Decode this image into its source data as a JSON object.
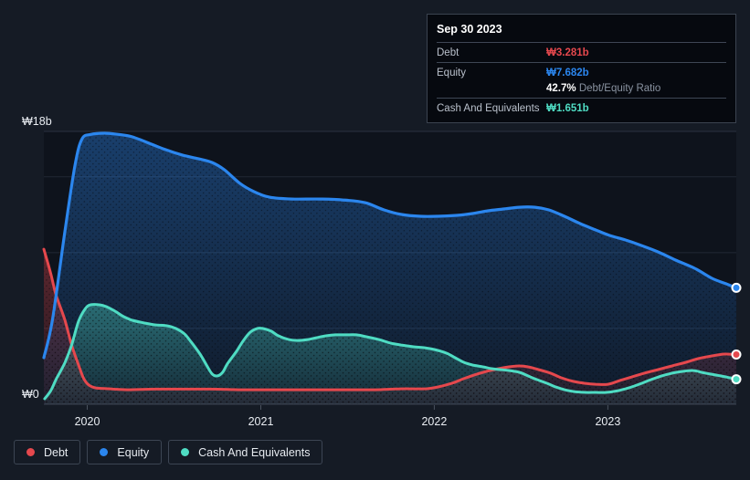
{
  "axes": {
    "y_top_label": "₩18b",
    "y_zero_label": "₩0",
    "x_ticks": [
      "2020",
      "2021",
      "2022",
      "2023"
    ]
  },
  "tooltip": {
    "date": "Sep 30 2023",
    "debt_label": "Debt",
    "debt_value": "₩3.281b",
    "equity_label": "Equity",
    "equity_value": "₩7.682b",
    "ratio_value": "42.7%",
    "ratio_label": "Debt/Equity Ratio",
    "cash_label": "Cash And Equivalents",
    "cash_value": "₩1.651b"
  },
  "legend": {
    "items": [
      {
        "key": "debt",
        "label": "Debt"
      },
      {
        "key": "equity",
        "label": "Equity"
      },
      {
        "key": "cash",
        "label": "Cash And Equivalents"
      }
    ]
  },
  "colors": {
    "debt": "#e5484d",
    "equity": "#2b86ee",
    "cash": "#4fdcc3",
    "grid": "#212834",
    "grid_top": "#2b323f",
    "axis": "#3a424e",
    "tick": "#4a525e",
    "label": "#e9edf2",
    "plot_bg": "#0e131c",
    "page_bg": "#151b25",
    "dot_ring": "#ffffff"
  },
  "chart_data": {
    "type": "area",
    "unit": "₩ billions",
    "x_range": [
      2019.75,
      2023.74
    ],
    "ylim": [
      0,
      18
    ],
    "y_gridlines_b": [
      18,
      15,
      10,
      5,
      0
    ],
    "legend_position": "bottom-left",
    "grid": true,
    "series": [
      {
        "key": "equity",
        "name": "Equity",
        "points": [
          [
            2019.75,
            3.07
          ],
          [
            2019.8,
            5.6
          ],
          [
            2019.87,
            11.3
          ],
          [
            2019.93,
            15.8
          ],
          [
            2019.97,
            17.5
          ],
          [
            2020.02,
            17.8
          ],
          [
            2020.1,
            17.88
          ],
          [
            2020.18,
            17.8
          ],
          [
            2020.26,
            17.64
          ],
          [
            2020.37,
            17.16
          ],
          [
            2020.45,
            16.8
          ],
          [
            2020.55,
            16.43
          ],
          [
            2020.64,
            16.2
          ],
          [
            2020.72,
            15.95
          ],
          [
            2020.79,
            15.47
          ],
          [
            2020.88,
            14.57
          ],
          [
            2020.96,
            14.03
          ],
          [
            2021.05,
            13.66
          ],
          [
            2021.18,
            13.54
          ],
          [
            2021.34,
            13.54
          ],
          [
            2021.47,
            13.48
          ],
          [
            2021.6,
            13.3
          ],
          [
            2021.71,
            12.82
          ],
          [
            2021.81,
            12.52
          ],
          [
            2021.92,
            12.4
          ],
          [
            2022.02,
            12.4
          ],
          [
            2022.13,
            12.46
          ],
          [
            2022.22,
            12.58
          ],
          [
            2022.31,
            12.76
          ],
          [
            2022.4,
            12.88
          ],
          [
            2022.49,
            13.0
          ],
          [
            2022.58,
            13.0
          ],
          [
            2022.66,
            12.82
          ],
          [
            2022.75,
            12.4
          ],
          [
            2022.84,
            11.92
          ],
          [
            2022.93,
            11.5
          ],
          [
            2023.01,
            11.14
          ],
          [
            2023.1,
            10.84
          ],
          [
            2023.18,
            10.53
          ],
          [
            2023.29,
            10.05
          ],
          [
            2023.39,
            9.51
          ],
          [
            2023.5,
            8.97
          ],
          [
            2023.6,
            8.31
          ],
          [
            2023.68,
            7.95
          ],
          [
            2023.74,
            7.682
          ]
        ]
      },
      {
        "key": "cash",
        "name": "Cash And Equivalents",
        "points": [
          [
            2019.755,
            0.36
          ],
          [
            2019.79,
            0.9
          ],
          [
            2019.82,
            1.63
          ],
          [
            2019.87,
            2.71
          ],
          [
            2019.91,
            3.91
          ],
          [
            2019.95,
            5.48
          ],
          [
            2019.99,
            6.32
          ],
          [
            2020.02,
            6.56
          ],
          [
            2020.07,
            6.56
          ],
          [
            2020.11,
            6.44
          ],
          [
            2020.16,
            6.14
          ],
          [
            2020.21,
            5.78
          ],
          [
            2020.26,
            5.54
          ],
          [
            2020.33,
            5.36
          ],
          [
            2020.39,
            5.24
          ],
          [
            2020.46,
            5.18
          ],
          [
            2020.51,
            5.0
          ],
          [
            2020.56,
            4.64
          ],
          [
            2020.6,
            4.09
          ],
          [
            2020.65,
            3.31
          ],
          [
            2020.69,
            2.53
          ],
          [
            2020.72,
            1.99
          ],
          [
            2020.75,
            1.87
          ],
          [
            2020.78,
            2.11
          ],
          [
            2020.81,
            2.71
          ],
          [
            2020.86,
            3.49
          ],
          [
            2020.9,
            4.21
          ],
          [
            2020.94,
            4.76
          ],
          [
            2020.98,
            5.0
          ],
          [
            2021.01,
            5.0
          ],
          [
            2021.06,
            4.82
          ],
          [
            2021.1,
            4.52
          ],
          [
            2021.16,
            4.27
          ],
          [
            2021.21,
            4.21
          ],
          [
            2021.27,
            4.27
          ],
          [
            2021.32,
            4.39
          ],
          [
            2021.38,
            4.52
          ],
          [
            2021.43,
            4.58
          ],
          [
            2021.49,
            4.58
          ],
          [
            2021.55,
            4.58
          ],
          [
            2021.61,
            4.45
          ],
          [
            2021.68,
            4.27
          ],
          [
            2021.75,
            4.03
          ],
          [
            2021.81,
            3.91
          ],
          [
            2021.88,
            3.79
          ],
          [
            2021.94,
            3.73
          ],
          [
            2022.0,
            3.61
          ],
          [
            2022.07,
            3.37
          ],
          [
            2022.12,
            3.07
          ],
          [
            2022.17,
            2.77
          ],
          [
            2022.22,
            2.59
          ],
          [
            2022.28,
            2.47
          ],
          [
            2022.33,
            2.35
          ],
          [
            2022.38,
            2.29
          ],
          [
            2022.43,
            2.23
          ],
          [
            2022.49,
            2.11
          ],
          [
            2022.54,
            1.87
          ],
          [
            2022.59,
            1.63
          ],
          [
            2022.65,
            1.38
          ],
          [
            2022.7,
            1.14
          ],
          [
            2022.75,
            0.96
          ],
          [
            2022.8,
            0.84
          ],
          [
            2022.87,
            0.78
          ],
          [
            2022.93,
            0.78
          ],
          [
            2022.99,
            0.78
          ],
          [
            2023.06,
            0.9
          ],
          [
            2023.12,
            1.08
          ],
          [
            2023.18,
            1.32
          ],
          [
            2023.25,
            1.63
          ],
          [
            2023.31,
            1.87
          ],
          [
            2023.37,
            2.05
          ],
          [
            2023.43,
            2.17
          ],
          [
            2023.49,
            2.23
          ],
          [
            2023.54,
            2.11
          ],
          [
            2023.59,
            1.99
          ],
          [
            2023.65,
            1.87
          ],
          [
            2023.7,
            1.75
          ],
          [
            2023.74,
            1.651
          ]
        ]
      },
      {
        "key": "debt",
        "name": "Debt",
        "points": [
          [
            2019.75,
            10.23
          ],
          [
            2019.79,
            8.61
          ],
          [
            2019.82,
            7.22
          ],
          [
            2019.87,
            5.6
          ],
          [
            2019.91,
            3.91
          ],
          [
            2019.95,
            2.59
          ],
          [
            2019.98,
            1.69
          ],
          [
            2020.01,
            1.26
          ],
          [
            2020.05,
            1.08
          ],
          [
            2020.13,
            1.02
          ],
          [
            2020.23,
            0.96
          ],
          [
            2020.39,
            1.0
          ],
          [
            2020.55,
            1.0
          ],
          [
            2020.71,
            1.0
          ],
          [
            2020.87,
            0.96
          ],
          [
            2021.02,
            0.96
          ],
          [
            2021.18,
            0.96
          ],
          [
            2021.34,
            0.96
          ],
          [
            2021.5,
            0.96
          ],
          [
            2021.66,
            0.96
          ],
          [
            2021.81,
            1.02
          ],
          [
            2021.95,
            1.02
          ],
          [
            2022.02,
            1.14
          ],
          [
            2022.1,
            1.38
          ],
          [
            2022.17,
            1.69
          ],
          [
            2022.23,
            1.93
          ],
          [
            2022.3,
            2.17
          ],
          [
            2022.37,
            2.35
          ],
          [
            2022.43,
            2.47
          ],
          [
            2022.49,
            2.53
          ],
          [
            2022.54,
            2.47
          ],
          [
            2022.6,
            2.29
          ],
          [
            2022.67,
            2.05
          ],
          [
            2022.73,
            1.75
          ],
          [
            2022.8,
            1.51
          ],
          [
            2022.87,
            1.38
          ],
          [
            2022.93,
            1.32
          ],
          [
            2023.0,
            1.32
          ],
          [
            2023.07,
            1.57
          ],
          [
            2023.14,
            1.81
          ],
          [
            2023.21,
            2.05
          ],
          [
            2023.29,
            2.29
          ],
          [
            2023.37,
            2.53
          ],
          [
            2023.45,
            2.77
          ],
          [
            2023.52,
            3.01
          ],
          [
            2023.6,
            3.19
          ],
          [
            2023.67,
            3.31
          ],
          [
            2023.74,
            3.281
          ]
        ]
      }
    ]
  }
}
